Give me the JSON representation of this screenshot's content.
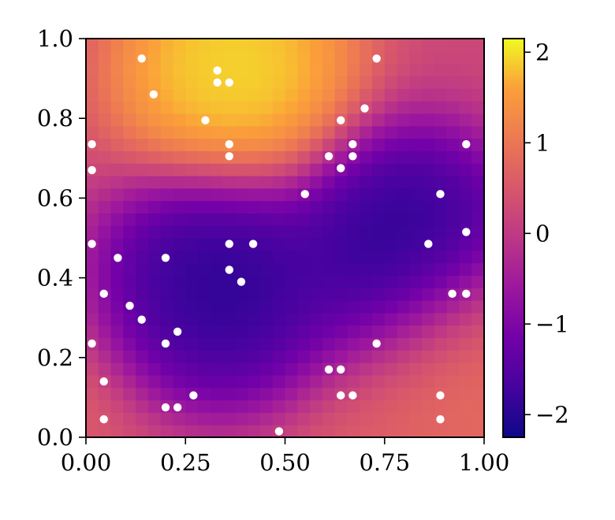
{
  "chart_data": {
    "type": "heatmap",
    "title": "",
    "xlabel": "",
    "ylabel": "",
    "xlim": [
      0,
      1
    ],
    "ylim": [
      0,
      1
    ],
    "x_ticks": [
      "0.00",
      "0.25",
      "0.50",
      "0.75",
      "1.00"
    ],
    "x_tick_values": [
      0,
      0.25,
      0.5,
      0.75,
      1.0
    ],
    "y_ticks": [
      "0.0",
      "0.2",
      "0.4",
      "0.6",
      "0.8",
      "1.0"
    ],
    "y_tick_values": [
      0,
      0.2,
      0.4,
      0.6,
      0.8,
      1.0
    ],
    "colormap": "plasma",
    "colorbar": {
      "range": [
        -2.25,
        2.15
      ],
      "ticks": [
        "2",
        "1",
        "0",
        "−1",
        "−2"
      ],
      "tick_values": [
        2,
        1,
        0,
        -1,
        -2
      ]
    },
    "grid": false,
    "field_grid_size": 32,
    "field_extrema": [
      {
        "x": 0.37,
        "y": 0.92,
        "value": 2.15
      },
      {
        "x": 0.33,
        "y": 0.38,
        "value": -2.2
      },
      {
        "x": 0.8,
        "y": 0.47,
        "value": -2.25
      },
      {
        "x": 0.97,
        "y": 0.18,
        "value": 0.9
      }
    ],
    "points": [
      {
        "x": 0.14,
        "y": 0.95
      },
      {
        "x": 0.33,
        "y": 0.92
      },
      {
        "x": 0.33,
        "y": 0.89
      },
      {
        "x": 0.36,
        "y": 0.89
      },
      {
        "x": 0.17,
        "y": 0.86
      },
      {
        "x": 0.3,
        "y": 0.795
      },
      {
        "x": 0.73,
        "y": 0.95
      },
      {
        "x": 0.7,
        "y": 0.825
      },
      {
        "x": 0.64,
        "y": 0.795
      },
      {
        "x": 0.67,
        "y": 0.735
      },
      {
        "x": 0.61,
        "y": 0.705
      },
      {
        "x": 0.67,
        "y": 0.705
      },
      {
        "x": 0.64,
        "y": 0.675
      },
      {
        "x": 0.55,
        "y": 0.61
      },
      {
        "x": 0.89,
        "y": 0.61
      },
      {
        "x": 0.955,
        "y": 0.735
      },
      {
        "x": 0.955,
        "y": 0.515
      },
      {
        "x": 0.86,
        "y": 0.485
      },
      {
        "x": 0.015,
        "y": 0.735
      },
      {
        "x": 0.015,
        "y": 0.67
      },
      {
        "x": 0.36,
        "y": 0.735
      },
      {
        "x": 0.36,
        "y": 0.705
      },
      {
        "x": 0.015,
        "y": 0.485
      },
      {
        "x": 0.08,
        "y": 0.45
      },
      {
        "x": 0.2,
        "y": 0.45
      },
      {
        "x": 0.36,
        "y": 0.485
      },
      {
        "x": 0.42,
        "y": 0.485
      },
      {
        "x": 0.36,
        "y": 0.42
      },
      {
        "x": 0.39,
        "y": 0.39
      },
      {
        "x": 0.045,
        "y": 0.36
      },
      {
        "x": 0.11,
        "y": 0.33
      },
      {
        "x": 0.14,
        "y": 0.295
      },
      {
        "x": 0.23,
        "y": 0.265
      },
      {
        "x": 0.2,
        "y": 0.235
      },
      {
        "x": 0.015,
        "y": 0.235
      },
      {
        "x": 0.045,
        "y": 0.14
      },
      {
        "x": 0.045,
        "y": 0.045
      },
      {
        "x": 0.2,
        "y": 0.075
      },
      {
        "x": 0.23,
        "y": 0.075
      },
      {
        "x": 0.27,
        "y": 0.105
      },
      {
        "x": 0.485,
        "y": 0.015
      },
      {
        "x": 0.61,
        "y": 0.17
      },
      {
        "x": 0.64,
        "y": 0.17
      },
      {
        "x": 0.64,
        "y": 0.105
      },
      {
        "x": 0.67,
        "y": 0.105
      },
      {
        "x": 0.73,
        "y": 0.235
      },
      {
        "x": 0.92,
        "y": 0.36
      },
      {
        "x": 0.955,
        "y": 0.36
      },
      {
        "x": 0.89,
        "y": 0.105
      },
      {
        "x": 0.89,
        "y": 0.045
      }
    ]
  }
}
